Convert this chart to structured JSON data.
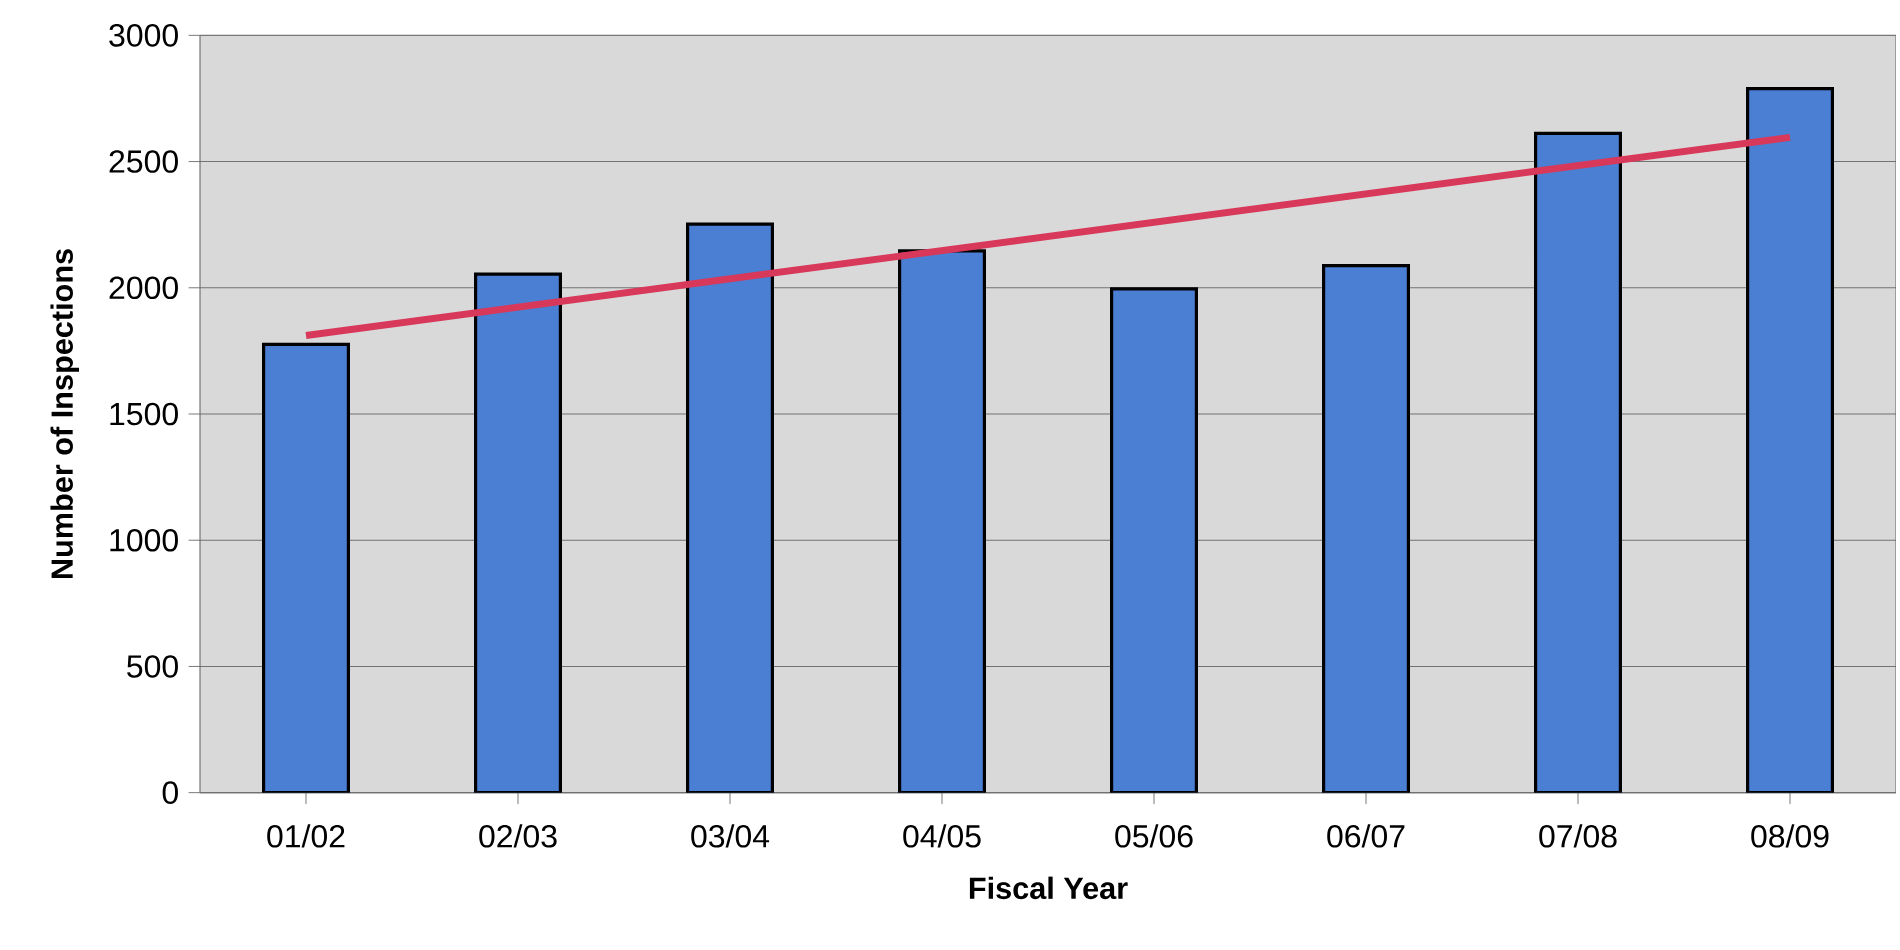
{
  "chart_data": {
    "type": "bar",
    "xlabel": "Fiscal Year",
    "ylabel": "Number of Inspections",
    "categories": [
      "01/02",
      "02/03",
      "03/04",
      "04/05",
      "05/06",
      "06/07",
      "07/08",
      "08/09"
    ],
    "series": [
      {
        "color": "#4a7fd4",
        "values": [
          1776,
          2054,
          2252,
          2146,
          1996,
          2088,
          2612,
          2789
        ]
      },
      {
        "type": "line",
        "color": "#d8385a",
        "x": [
          "01/02",
          "08/09"
        ],
        "values": [
          1811,
          2596
        ]
      }
    ],
    "ylim": [
      0,
      3000
    ],
    "yticks": [
      0,
      500,
      1000,
      1500,
      2000,
      2500,
      3000
    ],
    "grid": "y"
  }
}
